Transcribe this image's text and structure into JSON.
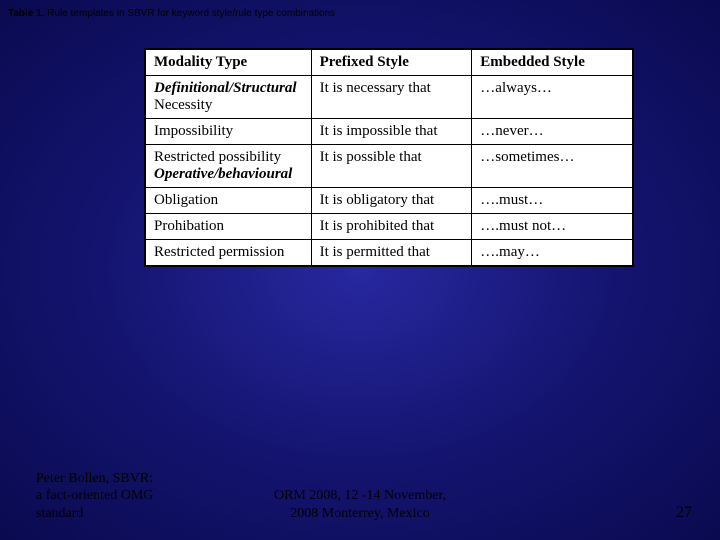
{
  "caption": {
    "label": "Table 1.",
    "text": " Rule templates in SBVR for keyword style/rule type combinations"
  },
  "table": {
    "headers": [
      "Modality Type",
      "Prefixed Style",
      "Embedded Style"
    ],
    "col_widths": [
      "34%",
      "33%",
      "33%"
    ],
    "header_fontweight": "bold",
    "section1": "Definitional/Structural",
    "rows1": [
      {
        "modality": "Necessity",
        "prefixed": "It is necessary that",
        "embedded": "…always…"
      },
      {
        "modality": "Impossibility",
        "prefixed": "It is impossible that",
        "embedded": "…never…"
      },
      {
        "modality": "Restricted possibility",
        "prefixed": "It is possible that",
        "embedded": "…sometimes…"
      }
    ],
    "section2": "Operative/behavioural",
    "rows2": [
      {
        "modality": "Obligation",
        "prefixed": "It is obligatory that",
        "embedded": "….must…"
      },
      {
        "modality": "Prohibation",
        "prefixed": "It is prohibited that",
        "embedded": "….must not…"
      },
      {
        "modality": "Restricted permission",
        "prefixed": "It is permitted that",
        "embedded": "….may…"
      }
    ],
    "background": "#ffffff",
    "border_color": "#000000",
    "font_size": 15
  },
  "footer": {
    "left_line1": "Peter Bollen, SBVR:",
    "left_line2": "a fact-oriented OMG",
    "left_line3": "standard",
    "center_line1": "ORM 2008, 12 -14 November,",
    "center_line2": "2008    Monterrey, Mexico",
    "slide_number": "27"
  },
  "colors": {
    "bg_center": "#2828a0",
    "bg_mid": "#141470",
    "bg_edge": "#0a0a50",
    "text": "#000000"
  }
}
